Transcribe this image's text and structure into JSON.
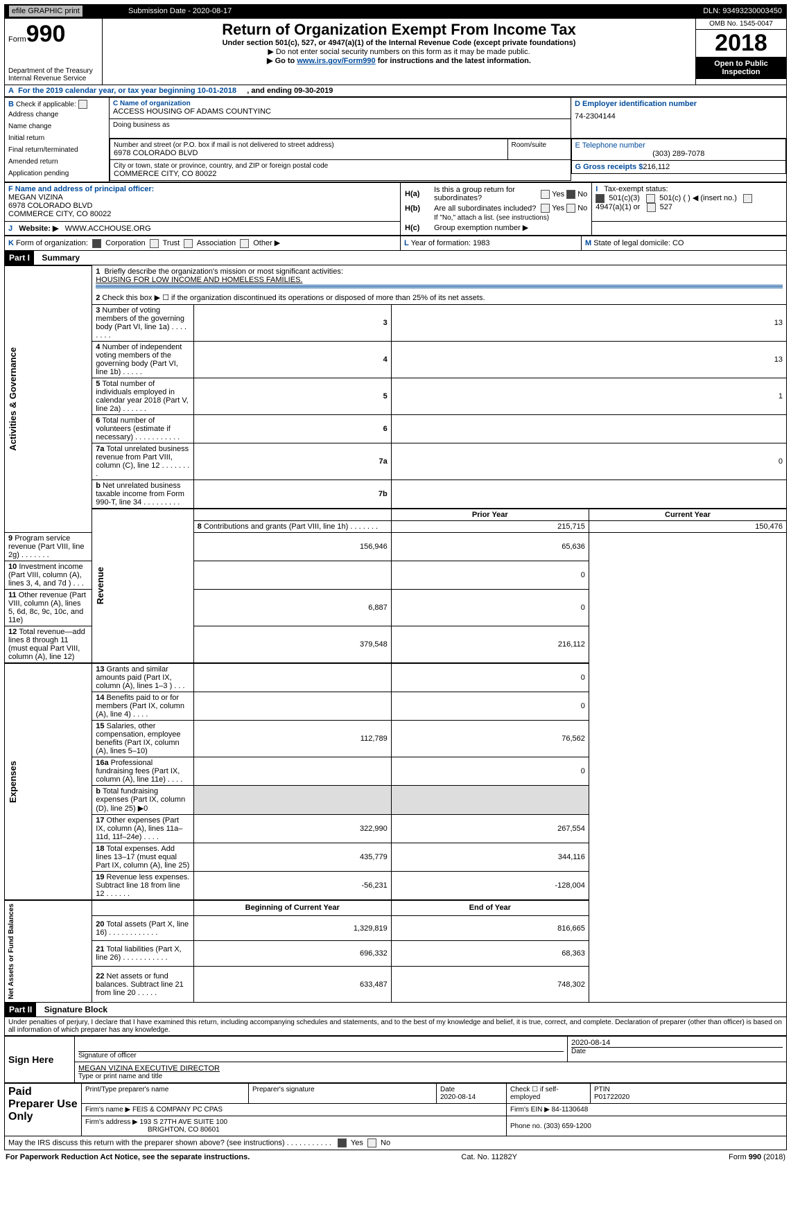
{
  "header": {
    "efile_label": "efile GRAPHIC print",
    "submission_date_label": "Submission Date - 2020-08-17",
    "dln_label": "DLN: 93493230003450",
    "form_word": "Form",
    "form_990": "990",
    "title": "Return of Organization Exempt From Income Tax",
    "subtitle1": "Under section 501(c), 527, or 4947(a)(1) of the Internal Revenue Code (except private foundations)",
    "subtitle2": "▶ Do not enter social security numbers on this form as it may be made public.",
    "goto_prefix": "▶ Go to ",
    "goto_link": "www.irs.gov/Form990",
    "goto_suffix": " for instructions and the latest information.",
    "dept": "Department of the Treasury",
    "irs": "Internal Revenue Service",
    "omb": "OMB No. 1545-0047",
    "year": "2018",
    "open_to_public": "Open to Public Inspection"
  },
  "lineA": {
    "text_a": "A",
    "text": "For the 2019 calendar year, or tax year beginning 10-01-2018",
    "ending": ", and ending 09-30-2019"
  },
  "boxB": {
    "letter": "B",
    "check_label": "Check if applicable:",
    "items": [
      "Address change",
      "Name change",
      "Initial return",
      "Final return/terminated",
      "Amended return",
      "Application pending"
    ]
  },
  "boxC": {
    "name_label": "C Name of organization",
    "name": "ACCESS HOUSING OF ADAMS COUNTYINC",
    "dba_label": "Doing business as",
    "street_label": "Number and street (or P.O. box if mail is not delivered to street address)",
    "street": "6978 COLORADO BLVD",
    "room_label": "Room/suite",
    "city_label": "City or town, state or province, country, and ZIP or foreign postal code",
    "city": "COMMERCE CITY, CO  80022"
  },
  "boxD": {
    "label": "D Employer identification number",
    "value": "74-2304144"
  },
  "boxE": {
    "label": "E Telephone number",
    "value": "(303) 289-7078"
  },
  "boxG": {
    "label": "G Gross receipts $",
    "value": "216,112"
  },
  "boxF": {
    "label": "F  Name and address of principal officer:",
    "name": "MEGAN VIZINA",
    "street": "6978 COLORADO BLVD",
    "city": "COMMERCE CITY, CO  80022"
  },
  "boxH": {
    "ha_label": "H(a)",
    "ha_text": "Is this a group return for subordinates?",
    "ha_yes": "Yes",
    "ha_no": "No",
    "hb_label": "H(b)",
    "hb_text": "Are all subordinates included?",
    "hb_yes": "Yes",
    "hb_no": "No",
    "hb_note": "If \"No,\" attach a list. (see instructions)",
    "hc_label": "H(c)",
    "hc_text": "Group exemption number ▶"
  },
  "boxI": {
    "label": "I",
    "text": "Tax-exempt status:",
    "opts": [
      "501(c)(3)",
      "501(c) (   ) ◀ (insert no.)",
      "4947(a)(1) or",
      "527"
    ]
  },
  "boxJ": {
    "label": "J",
    "text": "Website: ▶",
    "value": "WWW.ACCHOUSE.ORG"
  },
  "boxK": {
    "label": "K",
    "text": "Form of organization:",
    "opts": [
      "Corporation",
      "Trust",
      "Association",
      "Other ▶"
    ]
  },
  "boxL": {
    "label": "L",
    "text": "Year of formation: 1983"
  },
  "boxM": {
    "label": "M",
    "text": "State of legal domicile: CO"
  },
  "part1": {
    "label": "Part I",
    "title": "Summary"
  },
  "gov": {
    "l1_label": "1",
    "l1_text": "Briefly describe the organization's mission or most significant activities:",
    "l1_value": "HOUSING FOR LOW INCOME AND HOMELESS FAMILIES.",
    "l2_label": "2",
    "l2_text": "Check this box ▶ ☐  if the organization discontinued its operations or disposed of more than 25% of its net assets.",
    "l3_label": "3",
    "l3_text": "Number of voting members of the governing body (Part VI, line 1a)   .     .     .     .     .     .     .     .",
    "l3_ln": "3",
    "l3_val": "13",
    "l4_label": "4",
    "l4_text": "Number of independent voting members of the governing body (Part VI, line 1b)   .     .     .     .     .",
    "l4_ln": "4",
    "l4_val": "13",
    "l5_label": "5",
    "l5_text": "Total number of individuals employed in calendar year 2018 (Part V, line 2a)   .     .     .     .     .     .",
    "l5_ln": "5",
    "l5_val": "1",
    "l6_label": "6",
    "l6_text": "Total number of volunteers (estimate if necessary)    .     .     .     .     .     .     .     .     .     .     .",
    "l6_ln": "6",
    "l6_val": "",
    "l7a_label": "7a",
    "l7a_text": "Total unrelated business revenue from Part VIII, column (C), line 12   .     .     .     .     .     .     .     .",
    "l7a_ln": "7a",
    "l7a_val": "0",
    "l7b_label": "b",
    "l7b_text": "Net unrelated business taxable income from Form 990-T, line 34    .     .     .     .     .     .     .     .     .",
    "l7b_ln": "7b",
    "l7b_val": ""
  },
  "rev_hdr": {
    "prior": "Prior Year",
    "current": "Current Year"
  },
  "rev": {
    "l8": {
      "n": "8",
      "t": "Contributions and grants (Part VIII, line 1h)   .     .     .     .     .     .     .",
      "p": "215,715",
      "c": "150,476"
    },
    "l9": {
      "n": "9",
      "t": "Program service revenue (Part VIII, line 2g)    .     .     .     .     .     .     .",
      "p": "156,946",
      "c": "65,636"
    },
    "l10": {
      "n": "10",
      "t": "Investment income (Part VIII, column (A), lines 3, 4, and 7d )    .     .     .",
      "p": "",
      "c": "0"
    },
    "l11": {
      "n": "11",
      "t": "Other revenue (Part VIII, column (A), lines 5, 6d, 8c, 9c, 10c, and 11e)",
      "p": "6,887",
      "c": "0"
    },
    "l12": {
      "n": "12",
      "t": "Total revenue—add lines 8 through 11 (must equal Part VIII, column (A), line 12)",
      "p": "379,548",
      "c": "216,112"
    }
  },
  "exp": {
    "l13": {
      "n": "13",
      "t": "Grants and similar amounts paid (Part IX, column (A), lines 1–3 )   .     .     .",
      "p": "",
      "c": "0"
    },
    "l14": {
      "n": "14",
      "t": "Benefits paid to or for members (Part IX, column (A), line 4)   .     .     .     .",
      "p": "",
      "c": "0"
    },
    "l15": {
      "n": "15",
      "t": "Salaries, other compensation, employee benefits (Part IX, column (A), lines 5–10)",
      "p": "112,789",
      "c": "76,562"
    },
    "l16a": {
      "n": "16a",
      "t": "Professional fundraising fees (Part IX, column (A), line 11e)    .     .     .     .",
      "p": "",
      "c": "0"
    },
    "l16b": {
      "n": "b",
      "t": "Total fundraising expenses (Part IX, column (D), line 25) ▶0",
      "p": "",
      "c": ""
    },
    "l17": {
      "n": "17",
      "t": "Other expenses (Part IX, column (A), lines 11a–11d, 11f–24e)   .     .     .     .",
      "p": "322,990",
      "c": "267,554"
    },
    "l18": {
      "n": "18",
      "t": "Total expenses. Add lines 13–17 (must equal Part IX, column (A), line 25)",
      "p": "435,779",
      "c": "344,116"
    },
    "l19": {
      "n": "19",
      "t": "Revenue less expenses. Subtract line 18 from line 12   .     .     .     .     .     .",
      "p": "-56,231",
      "c": "-128,004"
    }
  },
  "net_hdr": {
    "beg": "Beginning of Current Year",
    "end": "End of Year"
  },
  "net": {
    "l20": {
      "n": "20",
      "t": "Total assets (Part X, line 16)   .      .     .     .     .     .     .     .     .     .     .     .",
      "p": "1,329,819",
      "c": "816,665"
    },
    "l21": {
      "n": "21",
      "t": "Total liabilities (Part X, line 26)   .     .     .     .     .     .     .     .     .     .     .",
      "p": "696,332",
      "c": "68,363"
    },
    "l22": {
      "n": "22",
      "t": "Net assets or fund balances. Subtract line 21 from line 20   .     .     .     .     .",
      "p": "633,487",
      "c": "748,302"
    }
  },
  "sections": {
    "gov": "Activities & Governance",
    "rev": "Revenue",
    "exp": "Expenses",
    "net": "Net Assets or Fund Balances"
  },
  "part2": {
    "label": "Part II",
    "title": "Signature Block",
    "perjury": "Under penalties of perjury, I declare that I have examined this return, including accompanying schedules and statements, and to the best of my knowledge and belief, it is true, correct, and complete. Declaration of preparer (other than officer) is based on all information of which preparer has any knowledge."
  },
  "sign": {
    "here": "Sign Here",
    "sig_officer": "Signature of officer",
    "date": "Date",
    "date_val": "2020-08-14",
    "typed": "MEGAN VIZINA  EXECUTIVE DIRECTOR",
    "typed_label": "Type or print name and title"
  },
  "paid": {
    "label": "Paid Preparer Use Only",
    "print_label": "Print/Type preparer's name",
    "sig_label": "Preparer's signature",
    "date_label": "Date",
    "date_val": "2020-08-14",
    "check_label": "Check ☐ if self-employed",
    "ptin_label": "PTIN",
    "ptin_val": "P01722020",
    "firm_name_label": "Firm's name     ▶",
    "firm_name": "FEIS & COMPANY PC CPAS",
    "firm_ein_label": "Firm's EIN ▶",
    "firm_ein": "84-1130648",
    "firm_addr_label": "Firm's address ▶",
    "firm_addr": "193 S 27TH AVE SUITE 100",
    "firm_city": "BRIGHTON, CO  80601",
    "phone_label": "Phone no.",
    "phone": "(303) 659-1200"
  },
  "discuss": {
    "text": "May the IRS discuss this return with the preparer shown above? (see instructions)    .     .     .     .     .     .     .     .     .     .     .",
    "yes": "Yes",
    "no": "No"
  },
  "footer": {
    "left": "For Paperwork Reduction Act Notice, see the separate instructions.",
    "mid": "Cat. No. 11282Y",
    "right": "Form 990 (2018)"
  }
}
